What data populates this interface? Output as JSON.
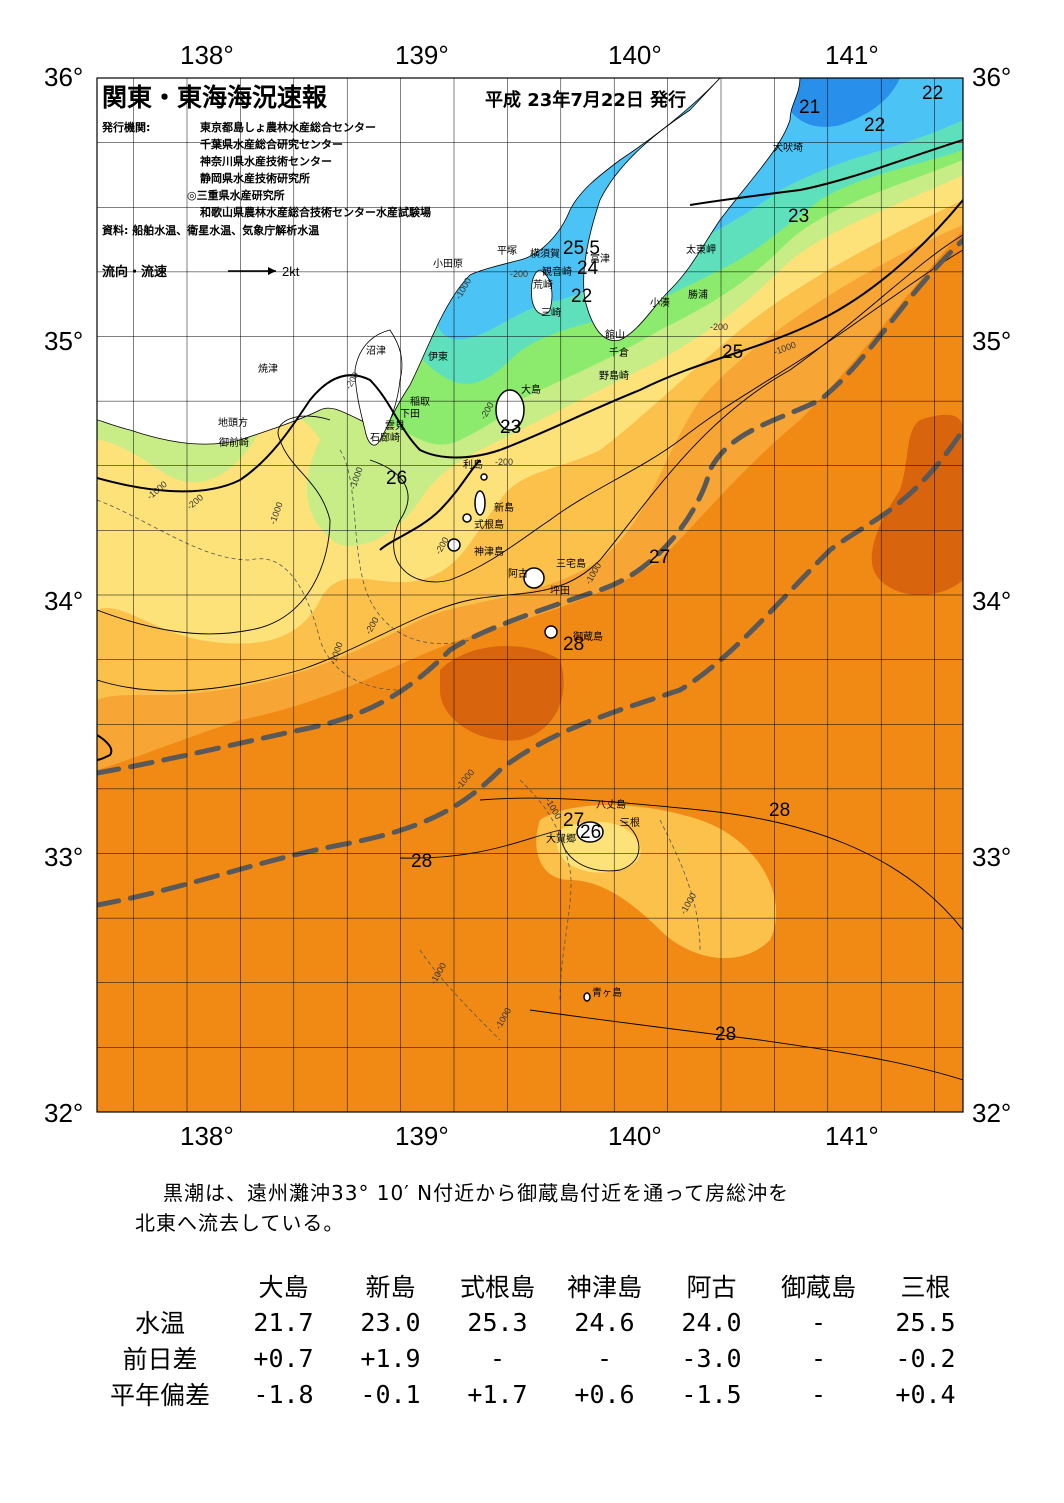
{
  "title": "関東・東海海況速報",
  "issue_date": "平成 23年7月22日 発行",
  "issuers_label": "発行機関:",
  "issuers": [
    "東京都島しょ農林水産総合センター",
    "千葉県水産総合研究センター",
    "神奈川県水産技術センター",
    "静岡県水産技術研究所",
    "◎三重県水産研究所",
    "和歌山県農林水産総合技術センター水産試験場"
  ],
  "source": "資料: 船舶水温、衛星水温、気象庁解析水温",
  "legend": {
    "label": "流向・流速",
    "unit": "2kt"
  },
  "longitude_labels": [
    "138°",
    "139°",
    "140°",
    "141°"
  ],
  "latitude_labels": [
    "36°",
    "35°",
    "34°",
    "33°",
    "32°"
  ],
  "colors": {
    "sea_29": "#f08a14",
    "sea_28": "#f7a535",
    "sea_27": "#fbc14a",
    "sea_26": "#fde27a",
    "sea_25": "#c8ec86",
    "sea_24": "#8cea6c",
    "sea_23": "#5fe0bd",
    "sea_22": "#4bc3f5",
    "sea_21": "#2890ea",
    "sea_30": "#d8640e",
    "land": "#ffffff",
    "kuroshio": "#595959"
  },
  "place_names": {
    "inubozaki": "犬吠埼",
    "taitomisaki": "太東岬",
    "katsuura": "勝浦",
    "kominato": "小湊",
    "tateyama": "館山",
    "chikura": "千倉",
    "nojimazaki": "野島崎",
    "futtsu": "富津",
    "yokosuka": "横須賀",
    "kannonzaki": "観音崎",
    "arasaki": "荒崎",
    "misaki": "三崎",
    "hiratsuka": "平塚",
    "odawara": "小田原",
    "numazu": "沼津",
    "ito": "伊東",
    "yaizu": "焼津",
    "inatori": "稲取",
    "shimoda": "下田",
    "kumomi": "雲見",
    "irozaki": "石廊崎",
    "jitokata": "地頭方",
    "omaezaki": "御前崎",
    "oshima": "大島",
    "toshima": "利島",
    "niijima": "新島",
    "shikinejima": "式根島",
    "kozushima": "神津島",
    "miyakejima": "三宅島",
    "ako": "阿古",
    "tsubota": "坪田",
    "mikurajima": "御蔵島",
    "hachijojima": "八丈島",
    "mine": "三根",
    "okago": "大賀郷",
    "aogashima": "青ヶ島"
  },
  "isotherm_labels": [
    "21",
    "22",
    "22",
    "23",
    "25.5",
    "24",
    "22",
    "25",
    "23",
    "26",
    "27",
    "28",
    "27",
    "26",
    "28",
    "28",
    "28"
  ],
  "isobath_labels": [
    "-200",
    "-1000"
  ],
  "summary": {
    "line1": "黒潮は、遠州灘沖33° 10′ N付近から御蔵島付近を通って房総沖を",
    "line2": "北東へ流去している。"
  },
  "table": {
    "columns": [
      "大島",
      "新島",
      "式根島",
      "神津島",
      "阿古",
      "御蔵島",
      "三根"
    ],
    "rows": [
      {
        "label": "水温",
        "values": [
          "21.7",
          "23.0",
          "25.3",
          "24.6",
          "24.0",
          "-",
          "25.5"
        ]
      },
      {
        "label": "前日差",
        "values": [
          "+0.7",
          "+1.9",
          "-",
          "-",
          "-3.0",
          "-",
          "-0.2"
        ]
      },
      {
        "label": "平年偏差",
        "values": [
          "-1.8",
          "-0.1",
          "+1.7",
          "+0.6",
          "-1.5",
          "-",
          "+0.4"
        ]
      }
    ]
  }
}
